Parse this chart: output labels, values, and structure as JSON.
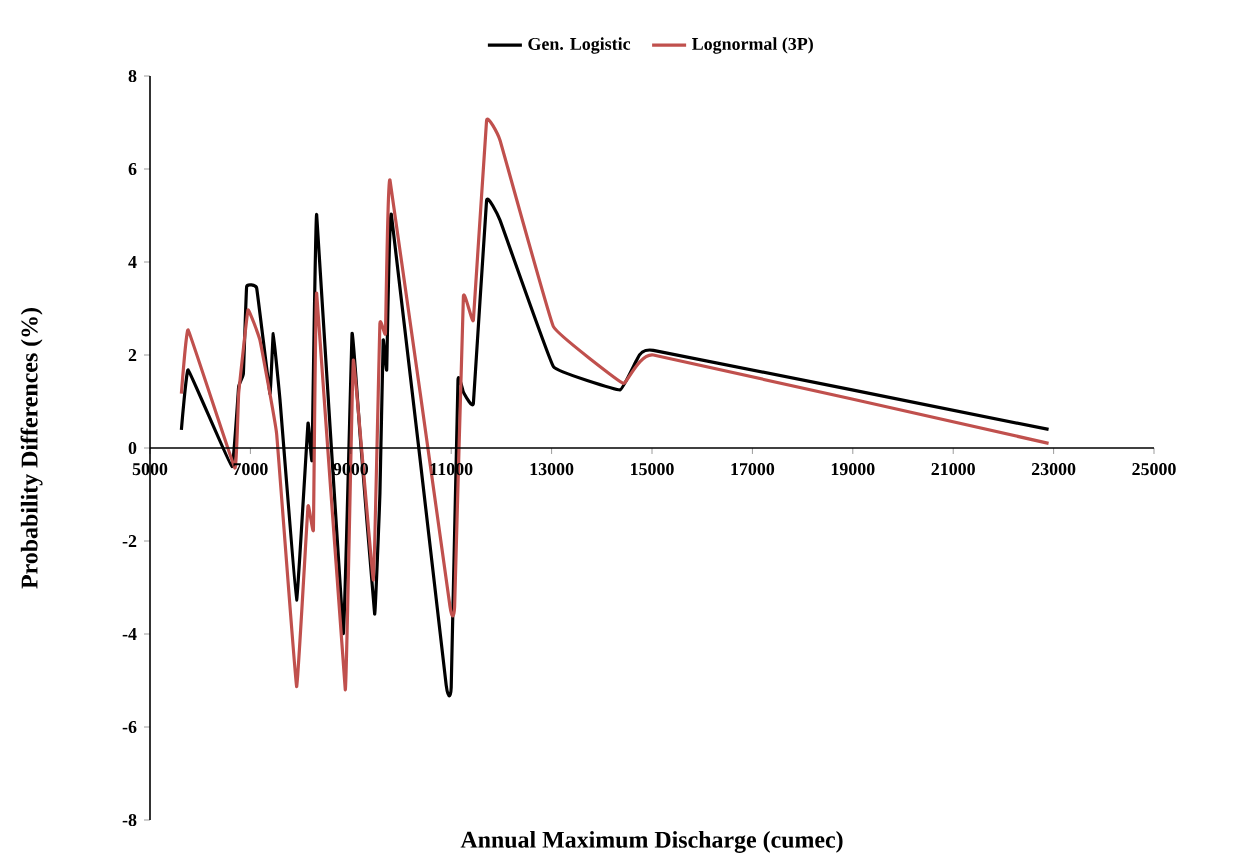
{
  "chart_data": {
    "type": "line",
    "xlabel": "Annual Maximum Discharge (cumec)",
    "ylabel": "Probability Differences (%)",
    "xlim": [
      5000,
      25000
    ],
    "ylim": [
      -8,
      8
    ],
    "xticks": [
      5000,
      7000,
      9000,
      11000,
      13000,
      15000,
      17000,
      19000,
      21000,
      23000,
      25000
    ],
    "yticks": [
      -8,
      -6,
      -4,
      -2,
      0,
      2,
      4,
      6,
      8
    ],
    "legend": "top",
    "grid": false,
    "marker": "none",
    "line_style": "solid",
    "series": [
      {
        "name": "Gen. Logistic",
        "color": "#000000",
        "x": [
          5625,
          5760,
          6630,
          6766,
          6860,
          6925,
          7125,
          7390,
          7455,
          7590,
          7920,
          8147,
          8227,
          8320,
          8850,
          9025,
          9183,
          9475,
          9580,
          9645,
          9715,
          9808,
          10900,
          11000,
          11135,
          11243,
          11442,
          11705,
          11972,
          13036,
          14362,
          14700,
          15027,
          22900
        ],
        "values": [
          0.39,
          1.68,
          -0.4,
          1.32,
          1.6,
          3.47,
          3.44,
          1.17,
          2.46,
          1.03,
          -3.27,
          0.53,
          -0.26,
          5.02,
          -3.99,
          2.46,
          0.31,
          -3.57,
          -0.98,
          2.32,
          1.68,
          5.02,
          -5.1,
          -5.15,
          1.46,
          1.2,
          0.96,
          5.33,
          4.9,
          1.75,
          1.25,
          1.9,
          2.1,
          0.4
        ]
      },
      {
        "name": "Lognormal (3P)",
        "color": "#c0504d",
        "x": [
          5625,
          5760,
          6690,
          6766,
          6952,
          7190,
          7522,
          7920,
          8147,
          8255,
          8320,
          8890,
          9050,
          9450,
          9580,
          9690,
          9781,
          10976,
          11068,
          11243,
          11442,
          11705,
          11972,
          13036,
          14430,
          15027,
          22900
        ],
        "values": [
          1.17,
          2.54,
          -0.43,
          1.17,
          2.97,
          2.32,
          0.31,
          -5.13,
          -1.25,
          -1.76,
          3.33,
          -5.2,
          1.89,
          -2.84,
          2.68,
          2.46,
          5.76,
          -3.41,
          -3.41,
          3.26,
          2.75,
          7.05,
          6.62,
          2.61,
          1.39,
          2.0,
          0.1
        ]
      }
    ]
  }
}
